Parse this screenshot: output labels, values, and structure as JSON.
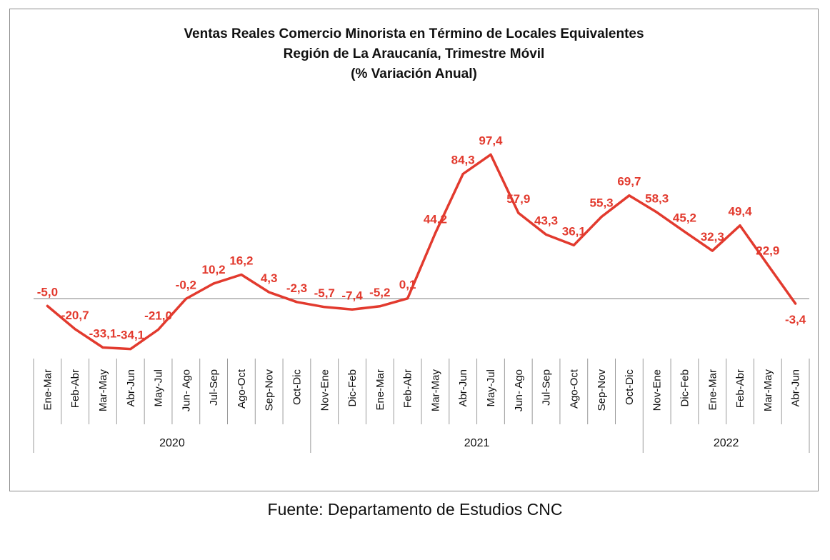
{
  "chart_data": {
    "type": "line",
    "title": [
      "Ventas Reales Comercio Minorista  en Término de Locales Equivalentes",
      "Región de La Araucanía, Trimestre Móvil",
      "(% Variación Anual)"
    ],
    "categories": [
      "Ene-Mar",
      "Feb-Abr",
      "Mar-May",
      "Abr-Jun",
      "May-Jul",
      "Jun- Ago",
      "Jul-Sep",
      "Ago-Oct",
      "Sep-Nov",
      "Oct-Dic",
      "Nov-Ene",
      "Dic-Feb",
      "Ene-Mar",
      "Feb-Abr",
      "Mar-May",
      "Abr-Jun",
      "May-Jul",
      "Jun- Ago",
      "Jul-Sep",
      "Ago-Oct",
      "Sep-Nov",
      "Oct-Dic",
      "Nov-Ene",
      "Dic-Feb",
      "Ene-Mar",
      "Feb-Abr",
      "Mar-May",
      "Abr-Jun"
    ],
    "values": [
      -5.0,
      -20.7,
      -33.1,
      -34.1,
      -21.0,
      -0.2,
      10.2,
      16.2,
      4.3,
      -2.3,
      -5.7,
      -7.4,
      -5.2,
      0.1,
      44.2,
      84.3,
      97.4,
      57.9,
      43.3,
      36.1,
      55.3,
      69.7,
      58.3,
      45.2,
      32.3,
      49.4,
      22.9,
      -3.4
    ],
    "data_labels": [
      "-5,0",
      "-20,7",
      "-33,1",
      "-34,1",
      "-21,0",
      "-0,2",
      "10,2",
      "16,2",
      "4,3",
      "-2,3",
      "-5,7",
      "-7,4",
      "-5,2",
      "0,1",
      "44,2",
      "84,3",
      "97,4",
      "57,9",
      "43,3",
      "36,1",
      "55,3",
      "69,7",
      "58,3",
      "45,2",
      "32,3",
      "49,4",
      "22,9",
      "-3,4"
    ],
    "years": [
      {
        "label": "2020",
        "start": 0,
        "end": 9
      },
      {
        "label": "2021",
        "start": 10,
        "end": 21
      },
      {
        "label": "2022",
        "start": 22,
        "end": 27
      }
    ],
    "line_color": "#e23a2e",
    "grid": false,
    "legend": "none"
  },
  "source": "Fuente: Departamento de Estudios CNC"
}
